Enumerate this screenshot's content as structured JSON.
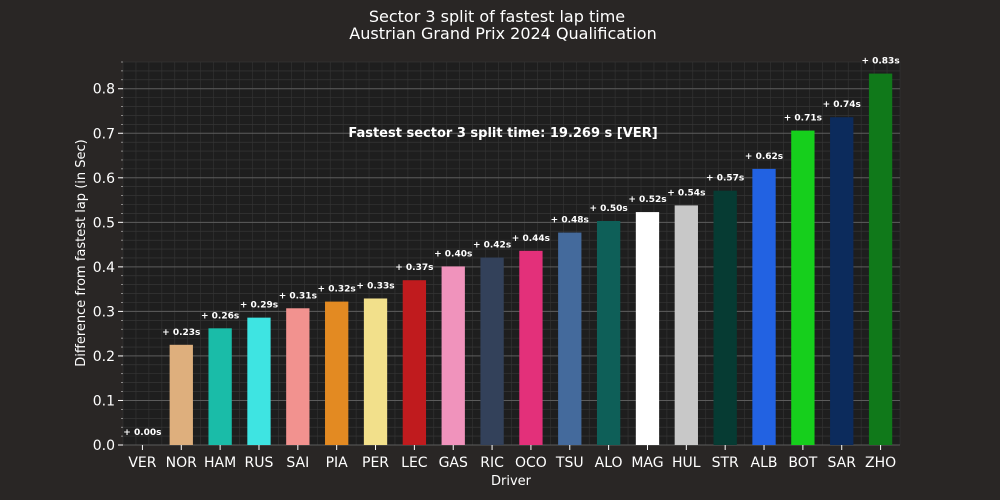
{
  "chart_data": {
    "type": "bar",
    "title": "Sector 3 split of fastest lap time",
    "subtitle": "Austrian Grand Prix 2024 Qualification",
    "xlabel": "Driver",
    "ylabel": "Difference from fastest lap (in Sec)",
    "ylim": [
      0,
      0.86
    ],
    "yticks": [
      "0.0",
      "0.1",
      "0.2",
      "0.3",
      "0.4",
      "0.5",
      "0.6",
      "0.7",
      "0.8"
    ],
    "grid": true,
    "annotation": "Fastest sector 3 split time: 19.269 s [VER]",
    "categories": [
      "VER",
      "NOR",
      "HAM",
      "RUS",
      "SAI",
      "PIA",
      "PER",
      "LEC",
      "GAS",
      "RIC",
      "OCO",
      "TSU",
      "ALO",
      "MAG",
      "HUL",
      "STR",
      "ALB",
      "BOT",
      "SAR",
      "ZHO"
    ],
    "values": [
      0.0,
      0.225,
      0.262,
      0.286,
      0.307,
      0.322,
      0.329,
      0.37,
      0.401,
      0.421,
      0.436,
      0.477,
      0.503,
      0.523,
      0.538,
      0.571,
      0.62,
      0.706,
      0.736,
      0.834
    ],
    "labels": [
      "+ 0.00s",
      "+ 0.23s",
      "+ 0.26s",
      "+ 0.29s",
      "+ 0.31s",
      "+ 0.32s",
      "+ 0.33s",
      "+ 0.37s",
      "+ 0.40s",
      "+ 0.42s",
      "+ 0.44s",
      "+ 0.48s",
      "+ 0.50s",
      "+ 0.52s",
      "+ 0.54s",
      "+ 0.57s",
      "+ 0.62s",
      "+ 0.71s",
      "+ 0.74s",
      "+ 0.83s"
    ],
    "colors": [
      "#3671C6",
      "#DEAF7D",
      "#1ABCA8",
      "#3EE4E2",
      "#F2928F",
      "#E38A22",
      "#F2E08B",
      "#C01B1E",
      "#F093BC",
      "#33415A",
      "#E3307A",
      "#446A9C",
      "#0E5F58",
      "#FFFFFF",
      "#C8C8C8",
      "#063B33",
      "#2262E2",
      "#16CF1C",
      "#0C2B5C",
      "#10791A"
    ]
  }
}
